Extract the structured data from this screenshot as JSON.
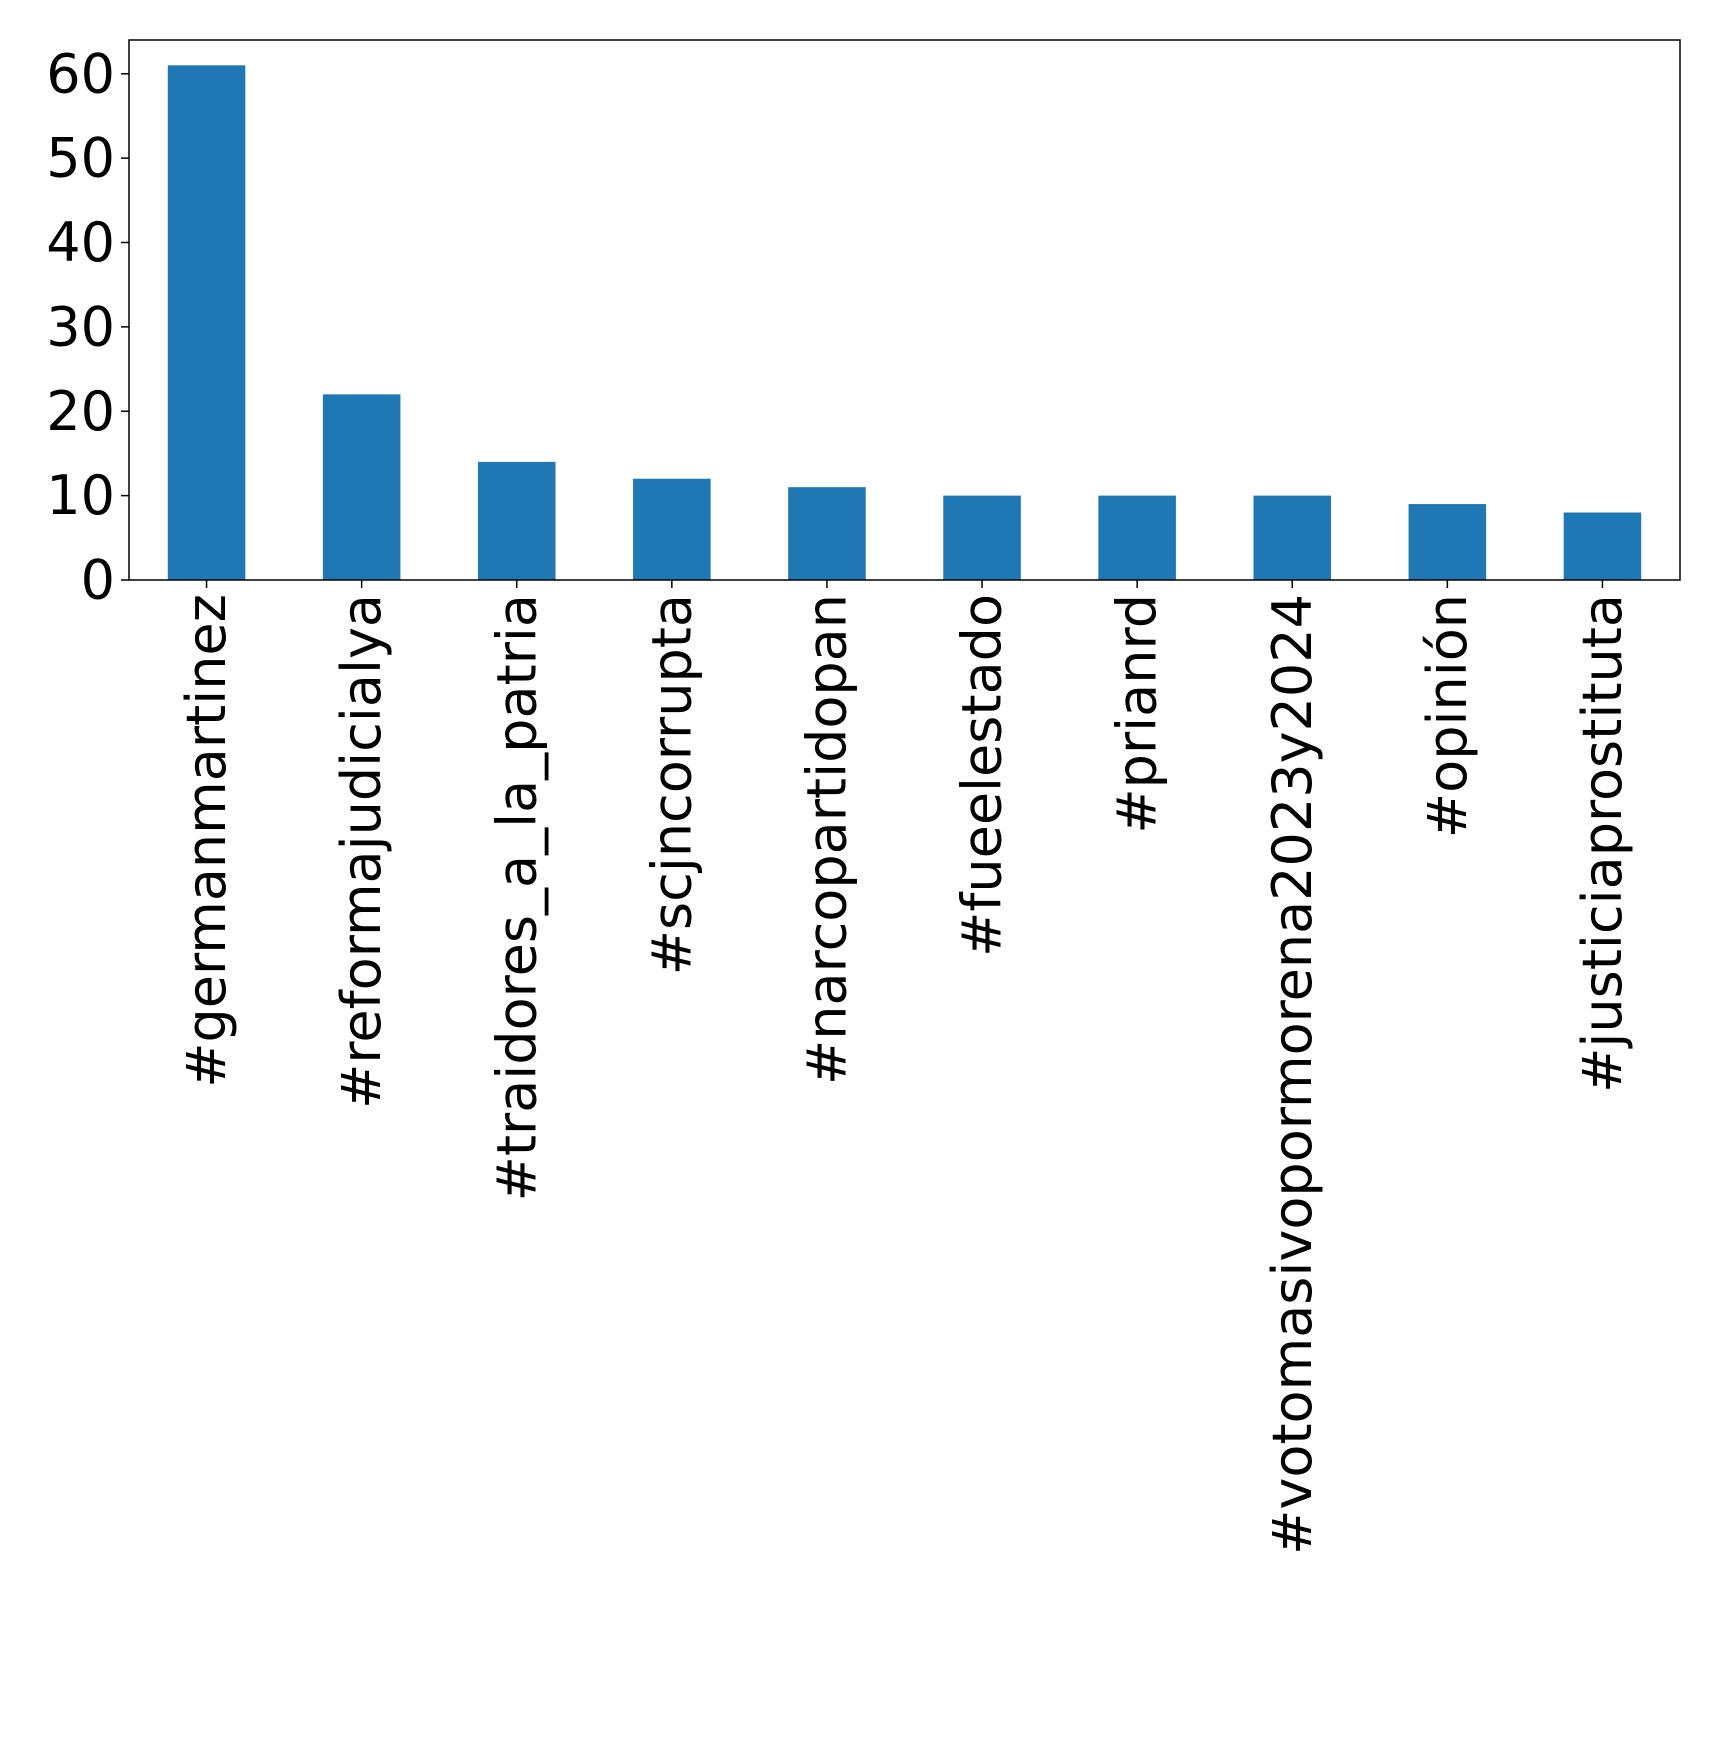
{
  "chart_data": {
    "type": "bar",
    "categories": [
      "#germanmartinez",
      "#reformajudicialya",
      "#traidores_a_la_patria",
      "#scjncorrupta",
      "#narcopartidopan",
      "#fueelestado",
      "#prianrd",
      "#votomasivopormorena2023y2024",
      "#opinión",
      "#justiciaprostituta"
    ],
    "values": [
      61,
      22,
      14,
      12,
      11,
      10,
      10,
      10,
      9,
      8
    ],
    "ylim": [
      0,
      64
    ],
    "yticks": [
      0,
      10,
      20,
      30,
      40,
      50,
      60
    ],
    "title": "",
    "xlabel": "",
    "ylabel": "",
    "bar_color": "#1f77b4",
    "grid": false,
    "legend": "none"
  }
}
